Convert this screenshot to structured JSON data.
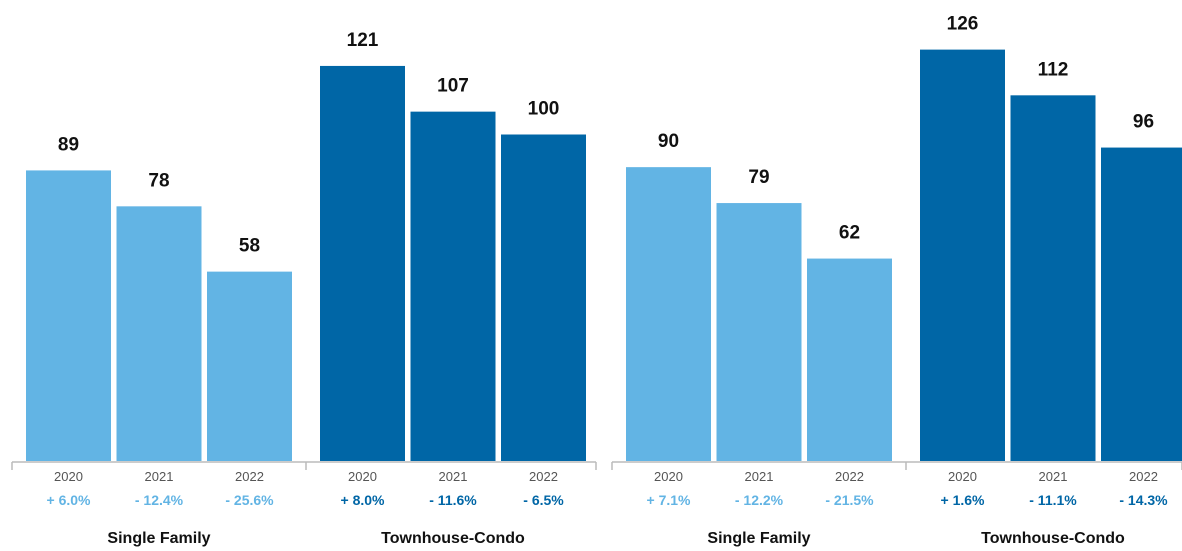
{
  "colors": {
    "single_family": "#62b4e4",
    "townhouse_condo": "#0066a6",
    "axis": "#bbbbbb"
  },
  "chart_data": [
    {
      "type": "bar",
      "ylim": [
        0,
        130
      ],
      "groups": [
        {
          "label": "Single Family",
          "color_key": "single_family",
          "bars": [
            {
              "year": "2020",
              "value": 89,
              "change": "+ 6.0%"
            },
            {
              "year": "2021",
              "value": 78,
              "change": "- 12.4%"
            },
            {
              "year": "2022",
              "value": 58,
              "change": "- 25.6%"
            }
          ]
        },
        {
          "label": "Townhouse-Condo",
          "color_key": "townhouse_condo",
          "bars": [
            {
              "year": "2020",
              "value": 121,
              "change": "+ 8.0%"
            },
            {
              "year": "2021",
              "value": 107,
              "change": "- 11.6%"
            },
            {
              "year": "2022",
              "value": 100,
              "change": "- 6.5%"
            }
          ]
        }
      ]
    },
    {
      "type": "bar",
      "ylim": [
        0,
        130
      ],
      "groups": [
        {
          "label": "Single Family",
          "color_key": "single_family",
          "bars": [
            {
              "year": "2020",
              "value": 90,
              "change": "+ 7.1%"
            },
            {
              "year": "2021",
              "value": 79,
              "change": "- 12.2%"
            },
            {
              "year": "2022",
              "value": 62,
              "change": "- 21.5%"
            }
          ]
        },
        {
          "label": "Townhouse-Condo",
          "color_key": "townhouse_condo",
          "bars": [
            {
              "year": "2020",
              "value": 126,
              "change": "+ 1.6%"
            },
            {
              "year": "2021",
              "value": 112,
              "change": "- 11.1%"
            },
            {
              "year": "2022",
              "value": 96,
              "change": "- 14.3%"
            }
          ]
        }
      ]
    }
  ]
}
